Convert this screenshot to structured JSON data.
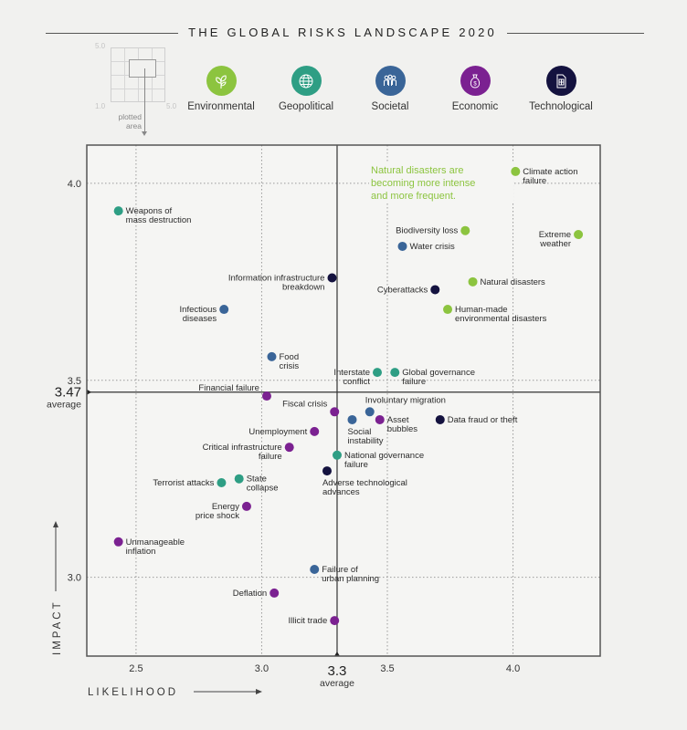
{
  "title": "THE GLOBAL RISKS LANDSCAPE 2020",
  "mini_diagram": {
    "top_label": "5.0",
    "bottom_left_label": "1.0",
    "bottom_right_label": "5.0",
    "caption_line1": "plotted",
    "caption_line2": "area"
  },
  "legend": [
    {
      "key": "environmental",
      "label": "Environmental",
      "icon": "leaf-icon",
      "color": "#8cc43f"
    },
    {
      "key": "geopolitical",
      "label": "Geopolitical",
      "icon": "globe-icon",
      "color": "#2e9e84"
    },
    {
      "key": "societal",
      "label": "Societal",
      "icon": "people-icon",
      "color": "#3a6598"
    },
    {
      "key": "economic",
      "label": "Economic",
      "icon": "money-bag-icon",
      "color": "#7b2191"
    },
    {
      "key": "technological",
      "label": "Technological",
      "icon": "sim-card-icon",
      "color": "#14123f"
    }
  ],
  "chart_data": {
    "type": "scatter",
    "title": "THE GLOBAL RISKS LANDSCAPE 2020",
    "xlabel": "LIKELIHOOD",
    "ylabel": "IMPACT",
    "xlim": [
      2.304,
      4.347
    ],
    "ylim": [
      2.8,
      4.097
    ],
    "xticks": [
      2.5,
      3.0,
      3.5,
      4.0
    ],
    "yticks": [
      3.0,
      3.5,
      4.0
    ],
    "xtick_labels": [
      "2.5",
      "3.0",
      "3.5",
      "4.0"
    ],
    "ytick_labels": [
      "3.0",
      "3.5",
      "4.0"
    ],
    "grid": "dotted",
    "x_average": {
      "value": 3.3,
      "label": "3.3",
      "sublabel": "average"
    },
    "y_average": {
      "value": 3.47,
      "label": "3.47",
      "sublabel": "average"
    },
    "annotation": [
      "Natural disasters are",
      "becoming more intense",
      "and more frequent."
    ],
    "category_colors": {
      "environmental": "#8cc43f",
      "geopolitical": "#2e9e84",
      "societal": "#3a6598",
      "economic": "#7b2191",
      "technological": "#14123f"
    },
    "points": [
      {
        "name": "Climate action failure",
        "lines": [
          "Climate action",
          "failure"
        ],
        "category": "environmental",
        "x": 4.01,
        "y": 4.03,
        "align": "right"
      },
      {
        "name": "Weapons of mass destruction",
        "lines": [
          "Weapons of",
          "mass destruction"
        ],
        "category": "geopolitical",
        "x": 2.43,
        "y": 3.93,
        "align": "right"
      },
      {
        "name": "Biodiversity loss",
        "lines": [
          "Biodiversity loss"
        ],
        "category": "environmental",
        "x": 3.81,
        "y": 3.88,
        "align": "left"
      },
      {
        "name": "Extreme weather",
        "lines": [
          "Extreme",
          "weather"
        ],
        "category": "environmental",
        "x": 4.26,
        "y": 3.87,
        "align": "left"
      },
      {
        "name": "Water crisis",
        "lines": [
          "Water crisis"
        ],
        "category": "societal",
        "x": 3.56,
        "y": 3.84,
        "align": "right"
      },
      {
        "name": "Information infrastructure breakdown",
        "lines": [
          "Information infrastructure",
          "breakdown"
        ],
        "category": "technological",
        "x": 3.28,
        "y": 3.76,
        "align": "left"
      },
      {
        "name": "Natural disasters",
        "lines": [
          "Natural disasters"
        ],
        "category": "environmental",
        "x": 3.84,
        "y": 3.75,
        "align": "right"
      },
      {
        "name": "Cyberattacks",
        "lines": [
          "Cyberattacks"
        ],
        "category": "technological",
        "x": 3.69,
        "y": 3.73,
        "align": "left"
      },
      {
        "name": "Human-made environmental disasters",
        "lines": [
          "Human-made",
          "environmental disasters"
        ],
        "category": "environmental",
        "x": 3.74,
        "y": 3.68,
        "align": "right"
      },
      {
        "name": "Infectious diseases",
        "lines": [
          "Infectious",
          "diseases"
        ],
        "category": "societal",
        "x": 2.85,
        "y": 3.68,
        "align": "left"
      },
      {
        "name": "Food crisis",
        "lines": [
          "Food",
          "crisis"
        ],
        "category": "societal",
        "x": 3.04,
        "y": 3.56,
        "align": "right"
      },
      {
        "name": "Interstate conflict",
        "lines": [
          "Interstate",
          "conflict"
        ],
        "category": "geopolitical",
        "x": 3.46,
        "y": 3.52,
        "align": "left"
      },
      {
        "name": "Global governance failure",
        "lines": [
          "Global governance",
          "failure"
        ],
        "category": "geopolitical",
        "x": 3.53,
        "y": 3.52,
        "align": "right"
      },
      {
        "name": "Financial failure",
        "lines": [
          "Financial failure"
        ],
        "category": "economic",
        "x": 3.02,
        "y": 3.46,
        "align": "left-up"
      },
      {
        "name": "Fiscal crisis",
        "lines": [
          "Fiscal crisis"
        ],
        "category": "economic",
        "x": 3.29,
        "y": 3.42,
        "align": "left-up"
      },
      {
        "name": "Involuntary migration",
        "lines": [
          "Involuntary migration"
        ],
        "category": "societal",
        "x": 3.43,
        "y": 3.42,
        "align": "above"
      },
      {
        "name": "Social instability",
        "lines": [
          "Social",
          "instability"
        ],
        "category": "societal",
        "x": 3.36,
        "y": 3.4,
        "align": "below"
      },
      {
        "name": "Asset bubbles",
        "lines": [
          "Asset",
          "bubbles"
        ],
        "category": "economic",
        "x": 3.47,
        "y": 3.4,
        "align": "right"
      },
      {
        "name": "Data fraud or theft",
        "lines": [
          "Data fraud or theft"
        ],
        "category": "technological",
        "x": 3.71,
        "y": 3.4,
        "align": "right"
      },
      {
        "name": "Unemployment",
        "lines": [
          "Unemployment"
        ],
        "category": "economic",
        "x": 3.21,
        "y": 3.37,
        "align": "left"
      },
      {
        "name": "Critical infrastructure failure",
        "lines": [
          "Critical infrastructure",
          "failure"
        ],
        "category": "economic",
        "x": 3.11,
        "y": 3.33,
        "align": "left"
      },
      {
        "name": "National governance failure",
        "lines": [
          "National governance",
          "failure"
        ],
        "category": "geopolitical",
        "x": 3.3,
        "y": 3.31,
        "align": "right"
      },
      {
        "name": "Adverse technological advances",
        "lines": [
          "Adverse technological",
          "advances"
        ],
        "category": "technological",
        "x": 3.26,
        "y": 3.27,
        "align": "below"
      },
      {
        "name": "State collapse",
        "lines": [
          "State",
          "collapse"
        ],
        "category": "geopolitical",
        "x": 2.91,
        "y": 3.25,
        "align": "right"
      },
      {
        "name": "Terrorist attacks",
        "lines": [
          "Terrorist attacks"
        ],
        "category": "geopolitical",
        "x": 2.84,
        "y": 3.24,
        "align": "left"
      },
      {
        "name": "Energy price shock",
        "lines": [
          "Energy",
          "price shock"
        ],
        "category": "economic",
        "x": 2.94,
        "y": 3.18,
        "align": "left"
      },
      {
        "name": "Unmanageable inflation",
        "lines": [
          "Unmanageable",
          "inflation"
        ],
        "category": "economic",
        "x": 2.43,
        "y": 3.09,
        "align": "right"
      },
      {
        "name": "Failure of urban planning",
        "lines": [
          "Failure of",
          "urban planning"
        ],
        "category": "societal",
        "x": 3.21,
        "y": 3.02,
        "align": "right"
      },
      {
        "name": "Deflation",
        "lines": [
          "Deflation"
        ],
        "category": "economic",
        "x": 3.05,
        "y": 2.96,
        "align": "left"
      },
      {
        "name": "Illicit trade",
        "lines": [
          "Illicit trade"
        ],
        "category": "economic",
        "x": 3.29,
        "y": 2.89,
        "align": "left"
      }
    ]
  }
}
